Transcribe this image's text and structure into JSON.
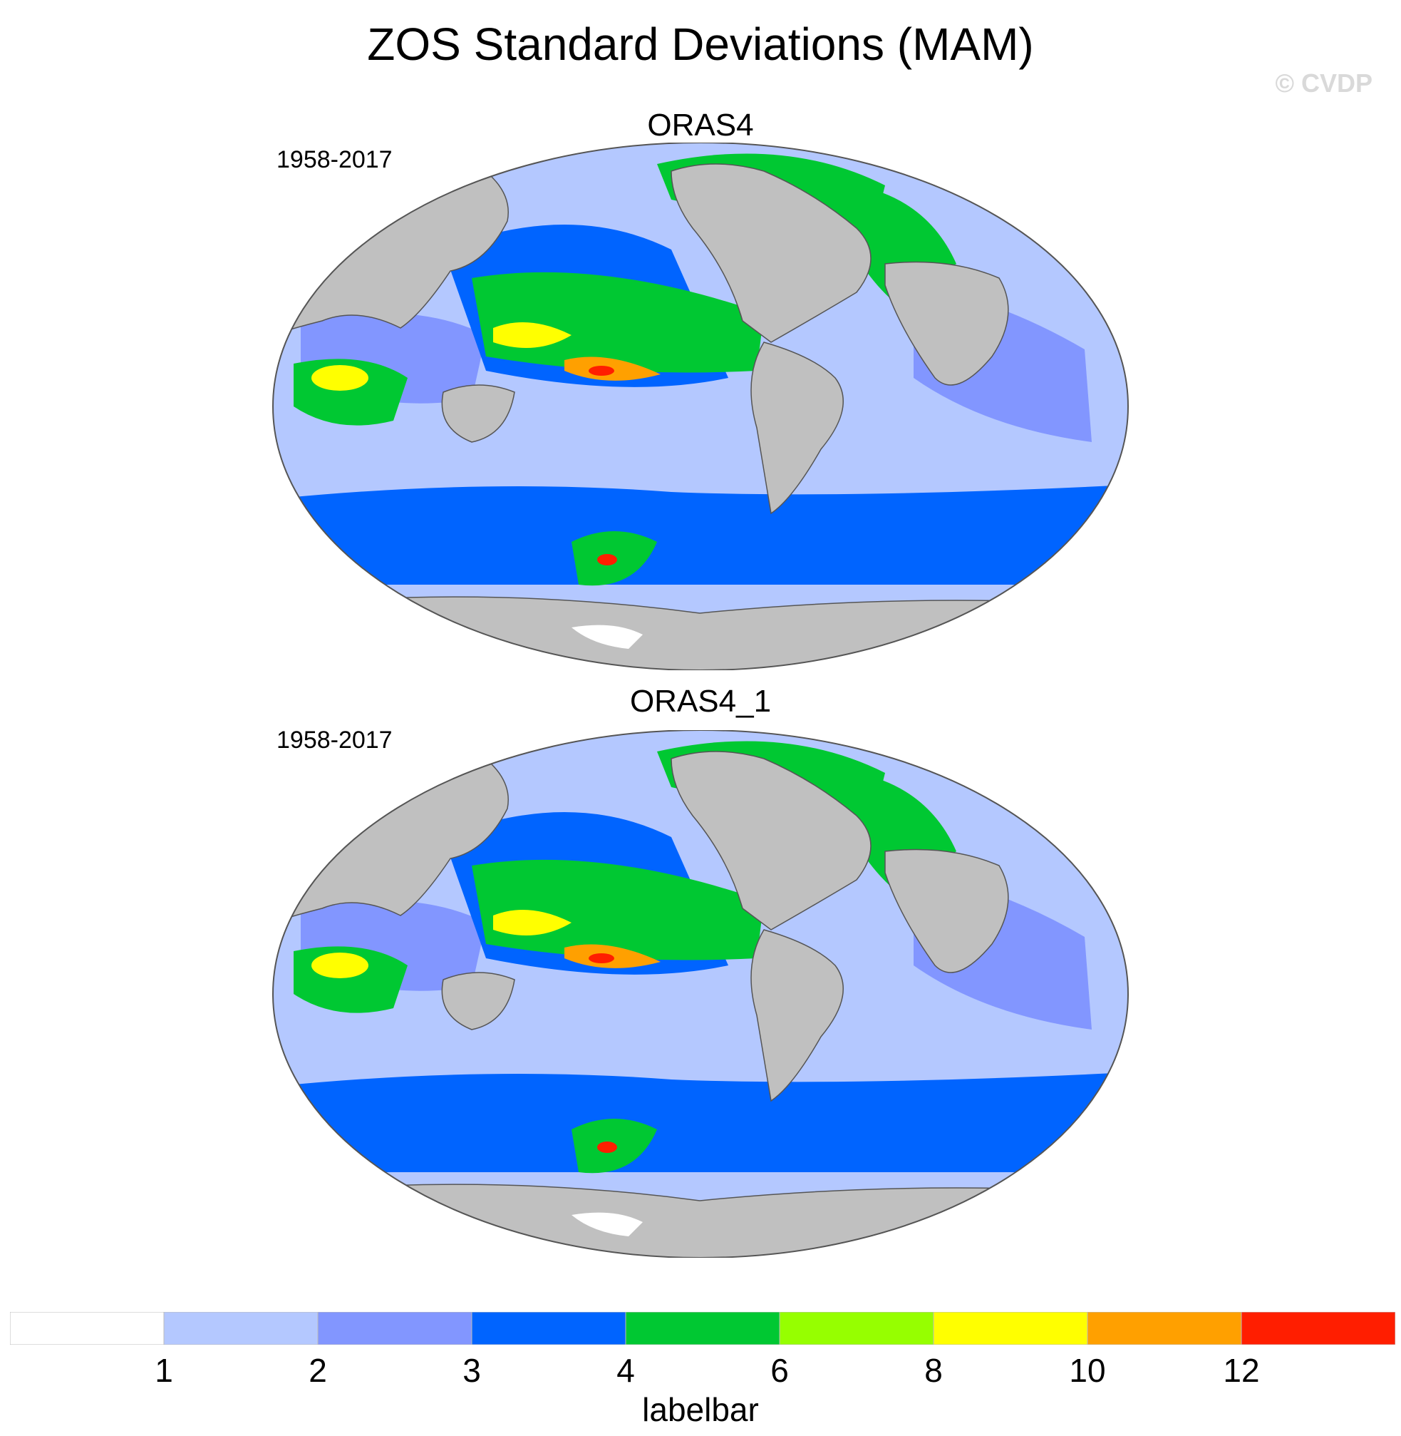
{
  "title": "ZOS Standard Deviations (MAM)",
  "watermark": "© CVDP",
  "panels": [
    {
      "title": "ORAS4",
      "period": "1958-2017"
    },
    {
      "title": "ORAS4_1",
      "period": "1958-2017"
    }
  ],
  "labelbar": {
    "label": "labelbar",
    "ticks": [
      "1",
      "2",
      "3",
      "4",
      "6",
      "8",
      "10",
      "12"
    ],
    "colors": [
      "#ffffff",
      "#b4c8ff",
      "#8296ff",
      "#0064ff",
      "#00c832",
      "#96ff00",
      "#ffff00",
      "#ffa000",
      "#ff1e00"
    ]
  },
  "colors": {
    "land": "#c0c0c0",
    "coast": "#555555"
  },
  "map_symbols": [
    {
      "name": "land",
      "color": "#c0c0c0"
    },
    {
      "name": "white-missing",
      "color": "#ffffff"
    }
  ]
}
